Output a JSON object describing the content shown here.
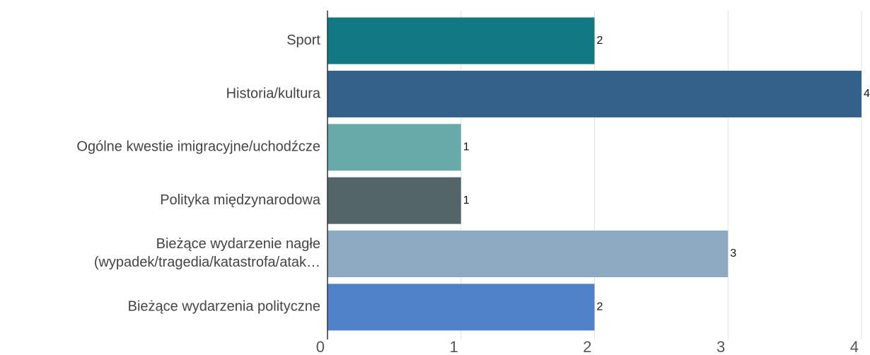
{
  "chart_data": {
    "type": "bar",
    "orientation": "horizontal",
    "categories": [
      "Sport",
      "Historia/kultura",
      "Ogólne kwestie imigracyjne/uchodźcze",
      "Polityka międzynarodowa",
      [
        "Bieżące wydarzenie nagłe",
        "(wypadek/tragedia/katastrofa/atak…"
      ],
      "Bieżące wydarzenia polityczne"
    ],
    "values": [
      2,
      4,
      1,
      1,
      3,
      2
    ],
    "colors": [
      "#127884",
      "#336189",
      "#68aaa9",
      "#536568",
      "#8eaac2",
      "#5082c9"
    ],
    "xlim": [
      0,
      4
    ],
    "xticks": [
      0,
      1,
      2,
      3,
      4
    ],
    "grid": true
  }
}
